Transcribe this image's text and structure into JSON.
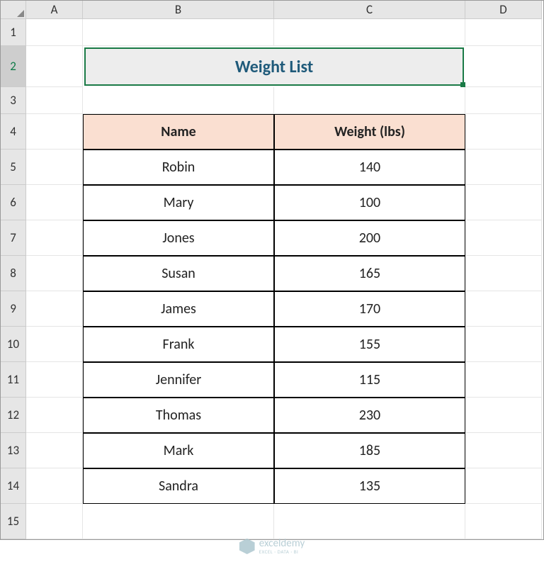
{
  "columns": [
    "A",
    "B",
    "C",
    "D"
  ],
  "rows": [
    "1",
    "2",
    "3",
    "4",
    "5",
    "6",
    "7",
    "8",
    "9",
    "10",
    "11",
    "12",
    "13",
    "14",
    "15"
  ],
  "activeRow": 2,
  "title": {
    "text": "Weight List",
    "background": "#ededed",
    "border": "#1a7a46",
    "textColor": "#1f5a7a",
    "fontSize": 24
  },
  "table": {
    "headerBackground": "#fadfd1",
    "borderColor": "#000000",
    "fontSize": 20,
    "headers": [
      "Name",
      "Weight (lbs)"
    ],
    "data": [
      [
        "Robin",
        "140"
      ],
      [
        "Mary",
        "100"
      ],
      [
        "Jones",
        "200"
      ],
      [
        "Susan",
        "165"
      ],
      [
        "James",
        "170"
      ],
      [
        "Frank",
        "155"
      ],
      [
        "Jennifer",
        "115"
      ],
      [
        "Thomas",
        "230"
      ],
      [
        "Mark",
        "185"
      ],
      [
        "Sandra",
        "135"
      ]
    ]
  },
  "watermark": {
    "brand": "exceldemy",
    "tagline": "EXCEL · DATA · BI",
    "color": "#a8c4cc"
  }
}
